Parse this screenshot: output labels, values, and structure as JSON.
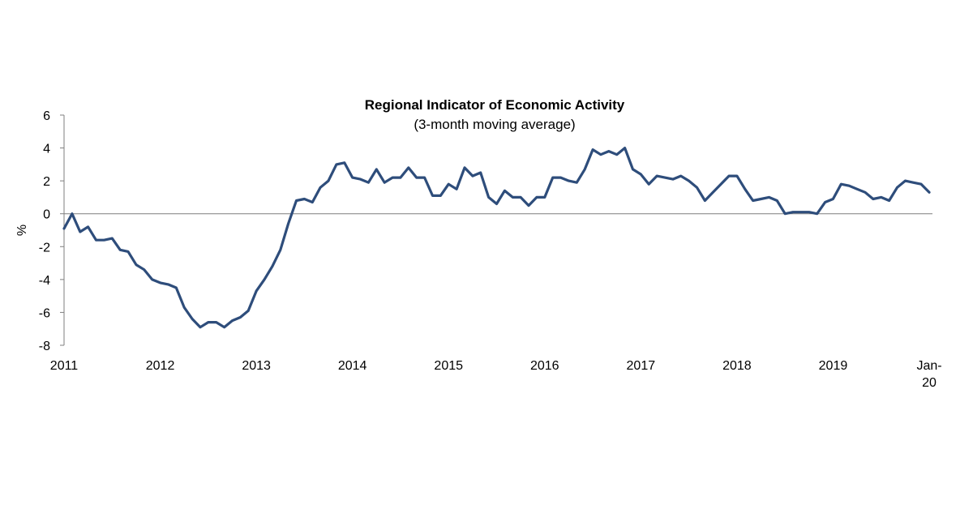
{
  "chart_data": {
    "type": "line",
    "title": "Regional Indicator of Economic Activity",
    "subtitle": "(3-month moving average)",
    "ylabel": "%",
    "xlabel": "",
    "ylim": [
      -8,
      6
    ],
    "yticks": [
      -8,
      -6,
      -4,
      -2,
      0,
      2,
      4,
      6
    ],
    "xlim": [
      "2011-01",
      "2020-01"
    ],
    "xticks": [
      {
        "x": "2011-01",
        "label": "2011"
      },
      {
        "x": "2012-01",
        "label": "2012"
      },
      {
        "x": "2013-01",
        "label": "2013"
      },
      {
        "x": "2014-01",
        "label": "2014"
      },
      {
        "x": "2015-01",
        "label": "2015"
      },
      {
        "x": "2016-01",
        "label": "2016"
      },
      {
        "x": "2017-01",
        "label": "2017"
      },
      {
        "x": "2018-01",
        "label": "2018"
      },
      {
        "x": "2019-01",
        "label": "2019"
      },
      {
        "x": "2020-01",
        "label": "Jan-",
        "label2": "20"
      }
    ],
    "grid": false,
    "legend": "none",
    "colors": {
      "line": "#2e4d7b",
      "zero_line": "#7f7f7f",
      "axis": "#7f7f7f"
    },
    "series": [
      {
        "x": [
          "2011-01",
          "2011-02",
          "2011-03",
          "2011-04",
          "2011-05",
          "2011-06",
          "2011-07",
          "2011-08",
          "2011-09",
          "2011-10",
          "2011-11",
          "2011-12",
          "2012-01",
          "2012-02",
          "2012-03",
          "2012-04",
          "2012-05",
          "2012-06",
          "2012-07",
          "2012-08",
          "2012-09",
          "2012-10",
          "2012-11",
          "2012-12",
          "2013-01",
          "2013-02",
          "2013-03",
          "2013-04",
          "2013-05",
          "2013-06",
          "2013-07",
          "2013-08",
          "2013-09",
          "2013-10",
          "2013-11",
          "2013-12",
          "2014-01",
          "2014-02",
          "2014-03",
          "2014-04",
          "2014-05",
          "2014-06",
          "2014-07",
          "2014-08",
          "2014-09",
          "2014-10",
          "2014-11",
          "2014-12",
          "2015-01",
          "2015-02",
          "2015-03",
          "2015-04",
          "2015-05",
          "2015-06",
          "2015-07",
          "2015-08",
          "2015-09",
          "2015-10",
          "2015-11",
          "2015-12",
          "2016-01",
          "2016-02",
          "2016-03",
          "2016-04",
          "2016-05",
          "2016-06",
          "2016-07",
          "2016-08",
          "2016-09",
          "2016-10",
          "2016-11",
          "2016-12",
          "2017-01",
          "2017-02",
          "2017-03",
          "2017-04",
          "2017-05",
          "2017-06",
          "2017-07",
          "2017-08",
          "2017-09",
          "2017-10",
          "2017-11",
          "2017-12",
          "2018-01",
          "2018-02",
          "2018-03",
          "2018-04",
          "2018-05",
          "2018-06",
          "2018-07",
          "2018-08",
          "2018-09",
          "2018-10",
          "2018-11",
          "2018-12",
          "2019-01",
          "2019-02",
          "2019-03",
          "2019-04",
          "2019-05",
          "2019-06",
          "2019-07",
          "2019-08",
          "2019-09",
          "2019-10",
          "2019-11",
          "2019-12",
          "2020-01"
        ],
        "values": [
          -0.9,
          0.0,
          -1.1,
          -0.8,
          -1.6,
          -1.6,
          -1.5,
          -2.2,
          -2.3,
          -3.1,
          -3.4,
          -4.0,
          -4.2,
          -4.3,
          -4.5,
          -5.7,
          -6.4,
          -6.9,
          -6.6,
          -6.6,
          -6.9,
          -6.5,
          -6.3,
          -5.9,
          -4.7,
          -4.0,
          -3.2,
          -2.2,
          -0.6,
          0.8,
          0.9,
          0.7,
          1.6,
          2.0,
          3.0,
          3.1,
          2.2,
          2.1,
          1.9,
          2.7,
          1.9,
          2.2,
          2.2,
          2.8,
          2.2,
          2.2,
          1.1,
          1.1,
          1.8,
          1.5,
          2.8,
          2.3,
          2.5,
          1.0,
          0.6,
          1.4,
          1.0,
          1.0,
          0.5,
          1.0,
          1.0,
          2.2,
          2.2,
          2.0,
          1.9,
          2.7,
          3.9,
          3.6,
          3.8,
          3.6,
          4.0,
          2.7,
          2.4,
          1.8,
          2.3,
          2.2,
          2.1,
          2.3,
          2.0,
          1.6,
          0.8,
          1.3,
          1.8,
          2.3,
          2.3,
          1.5,
          0.8,
          0.9,
          1.0,
          0.8,
          0.0,
          0.1,
          0.1,
          0.1,
          0.0,
          0.7,
          0.9,
          1.8,
          1.7,
          1.5,
          1.3,
          0.9,
          1.0,
          0.8,
          1.6,
          2.0,
          1.9,
          1.8,
          1.3
        ]
      }
    ]
  }
}
